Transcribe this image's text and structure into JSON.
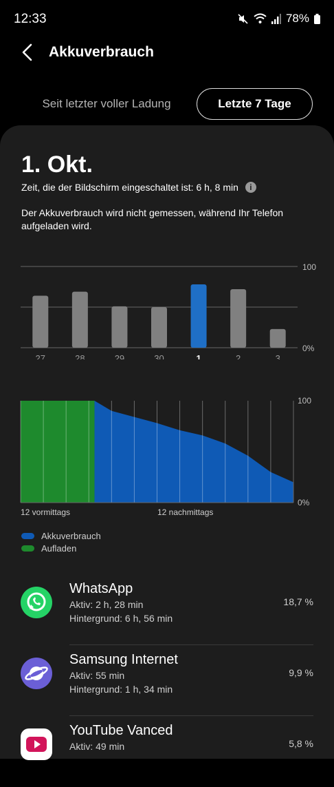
{
  "status": {
    "time": "12:33",
    "battery": "78%"
  },
  "header": {
    "title": "Akkuverbrauch"
  },
  "tabs": {
    "inactive": "Seit letzter voller Ladung",
    "active": "Letzte 7 Tage"
  },
  "day": {
    "date": "1. Okt.",
    "screen_time": "Zeit, die der Bildschirm eingeschaltet ist: 6 h, 8 min",
    "note": "Der Akkuverbrauch wird nicht gemessen, während Ihr Telefon aufgeladen wird."
  },
  "chart_data": [
    {
      "type": "bar",
      "categories": [
        "27",
        "28",
        "29",
        "30",
        "1",
        "2",
        "3"
      ],
      "values": [
        64,
        69,
        51,
        50,
        78,
        72,
        23
      ],
      "selected": "1",
      "ylim": [
        0,
        100
      ],
      "y_labels": [
        "100",
        "0%"
      ],
      "colors": {
        "bar": "#808080",
        "selected": "#1f6fc6",
        "grid": "#666666"
      }
    },
    {
      "type": "area",
      "x_labels": [
        "12 vormittags",
        "12 nachmittags"
      ],
      "y_labels": [
        "100",
        "0%"
      ],
      "ylim": [
        0,
        100
      ],
      "series": [
        {
          "name": "Aufladen",
          "color": "#1e8a2d",
          "x": [
            0,
            3.25
          ],
          "values": [
            100,
            100
          ]
        },
        {
          "name": "Akkuverbrauch",
          "color": "#0f5ab5",
          "x": [
            3.25,
            4,
            5,
            6,
            7,
            8,
            9,
            10,
            11,
            12
          ],
          "values": [
            100,
            90,
            84,
            78,
            71,
            66,
            58,
            46,
            30,
            20
          ]
        }
      ]
    }
  ],
  "legend": [
    {
      "label": "Akkuverbrauch",
      "color": "#0f5ab5"
    },
    {
      "label": "Aufladen",
      "color": "#1e8a2d"
    }
  ],
  "apps": [
    {
      "name": "WhatsApp",
      "active": "Aktiv: 2 h, 28 min",
      "background": "Hintergrund: 6 h, 56 min",
      "percent": "18,7 %",
      "icon": "whatsapp-icon",
      "color": "#25d366"
    },
    {
      "name": "Samsung Internet",
      "active": "Aktiv: 55 min",
      "background": "Hintergrund: 1 h, 34 min",
      "percent": "9,9 %",
      "icon": "samsung-internet-icon",
      "color": "#6b5fd6"
    },
    {
      "name": "YouTube Vanced",
      "active": "Aktiv: 49 min",
      "background": "",
      "percent": "5,8 %",
      "icon": "youtube-vanced-icon",
      "color": "#ffffff"
    }
  ]
}
